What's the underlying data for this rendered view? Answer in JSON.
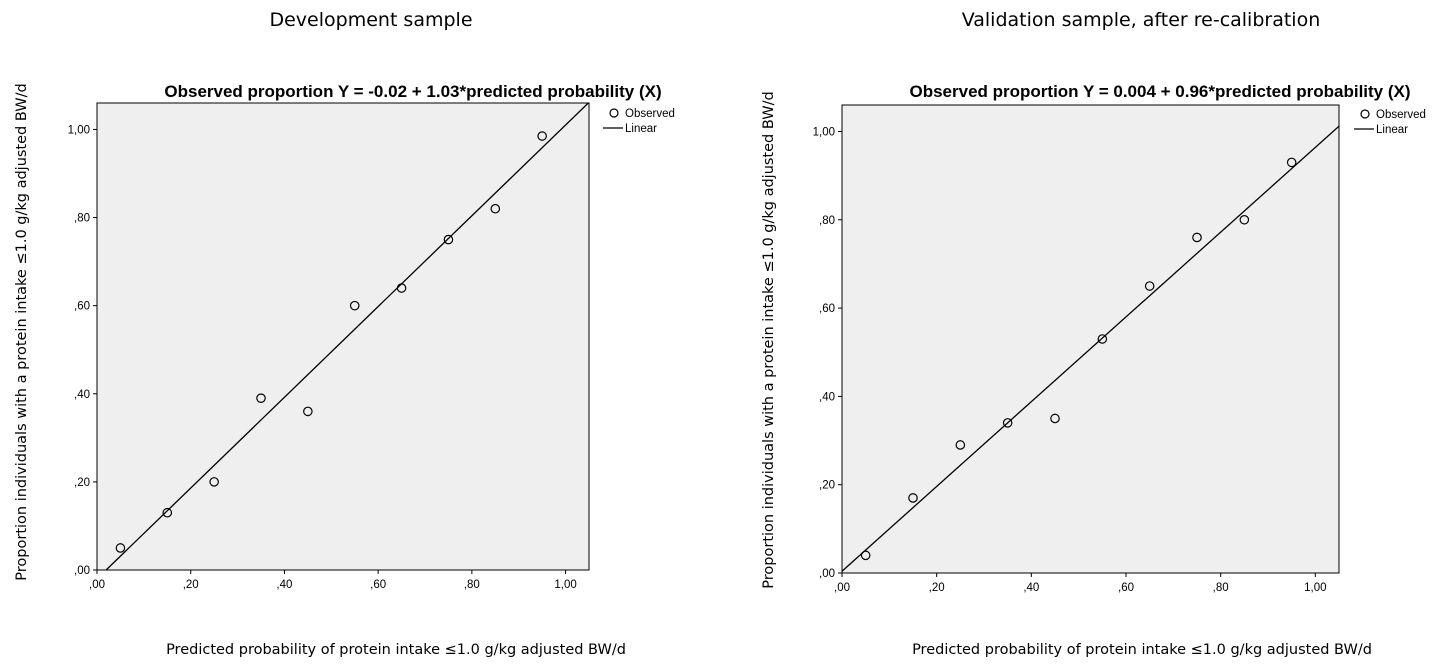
{
  "chart_data": [
    {
      "type": "scatter",
      "heading": "Development sample",
      "title": "Observed proportion Y = -0.02 + 1.03*predicted probability (X)",
      "xlabel": "Predicted probability of protein intake ≤1.0 g/kg adjusted BW/d",
      "ylabel": "Proportion individuals with a protein intake ≤1.0 g/kg adjusted BW/d",
      "xlim": [
        0,
        1.05
      ],
      "ylim": [
        0,
        1.06
      ],
      "xticks": [
        0,
        0.2,
        0.4,
        0.6,
        0.8,
        1.0
      ],
      "xtick_labels": [
        ",00",
        ",20",
        ",40",
        ",60",
        ",80",
        "1,00"
      ],
      "yticks": [
        0,
        0.2,
        0.4,
        0.6,
        0.8,
        1.0
      ],
      "ytick_labels": [
        ",00",
        ",20",
        ",40",
        ",60",
        ",80",
        "1,00"
      ],
      "grid": false,
      "legend": [
        "Observed",
        "Linear"
      ],
      "legend_position": "top-right, outside plot",
      "plot_background": "#efefef",
      "series": [
        {
          "name": "Observed",
          "kind": "points",
          "x": [
            0.05,
            0.15,
            0.25,
            0.35,
            0.45,
            0.55,
            0.65,
            0.75,
            0.85,
            0.95
          ],
          "y": [
            0.05,
            0.13,
            0.2,
            0.39,
            0.36,
            0.6,
            0.64,
            0.75,
            0.82,
            0.985
          ]
        },
        {
          "name": "Linear",
          "kind": "line",
          "intercept": -0.02,
          "slope": 1.03
        }
      ]
    },
    {
      "type": "scatter",
      "heading": "Validation sample, after re-calibration",
      "title": "Observed proportion Y = 0.004 + 0.96*predicted probability (X)",
      "xlabel": "Predicted probability of protein intake ≤1.0 g/kg adjusted BW/d",
      "ylabel": "Proportion individuals with a protein intake ≤1.0 g/kg adjusted BW/d",
      "xlim": [
        0,
        1.05
      ],
      "ylim": [
        0,
        1.06
      ],
      "xticks": [
        0,
        0.2,
        0.4,
        0.6,
        0.8,
        1.0
      ],
      "xtick_labels": [
        ",00",
        ",20",
        ",40",
        ",60",
        ",80",
        "1,00"
      ],
      "yticks": [
        0,
        0.2,
        0.4,
        0.6,
        0.8,
        1.0
      ],
      "ytick_labels": [
        ",00",
        ",20",
        ",40",
        ",60",
        ",80",
        "1,00"
      ],
      "grid": false,
      "legend": [
        "Observed",
        "Linear"
      ],
      "legend_position": "top-right, outside plot",
      "plot_background": "#efefef",
      "series": [
        {
          "name": "Observed",
          "kind": "points",
          "x": [
            0.05,
            0.15,
            0.25,
            0.35,
            0.45,
            0.55,
            0.65,
            0.75,
            0.85,
            0.95
          ],
          "y": [
            0.04,
            0.17,
            0.29,
            0.34,
            0.35,
            0.53,
            0.65,
            0.76,
            0.8,
            0.93
          ]
        },
        {
          "name": "Linear",
          "kind": "line",
          "intercept": 0.004,
          "slope": 0.96
        }
      ]
    }
  ]
}
